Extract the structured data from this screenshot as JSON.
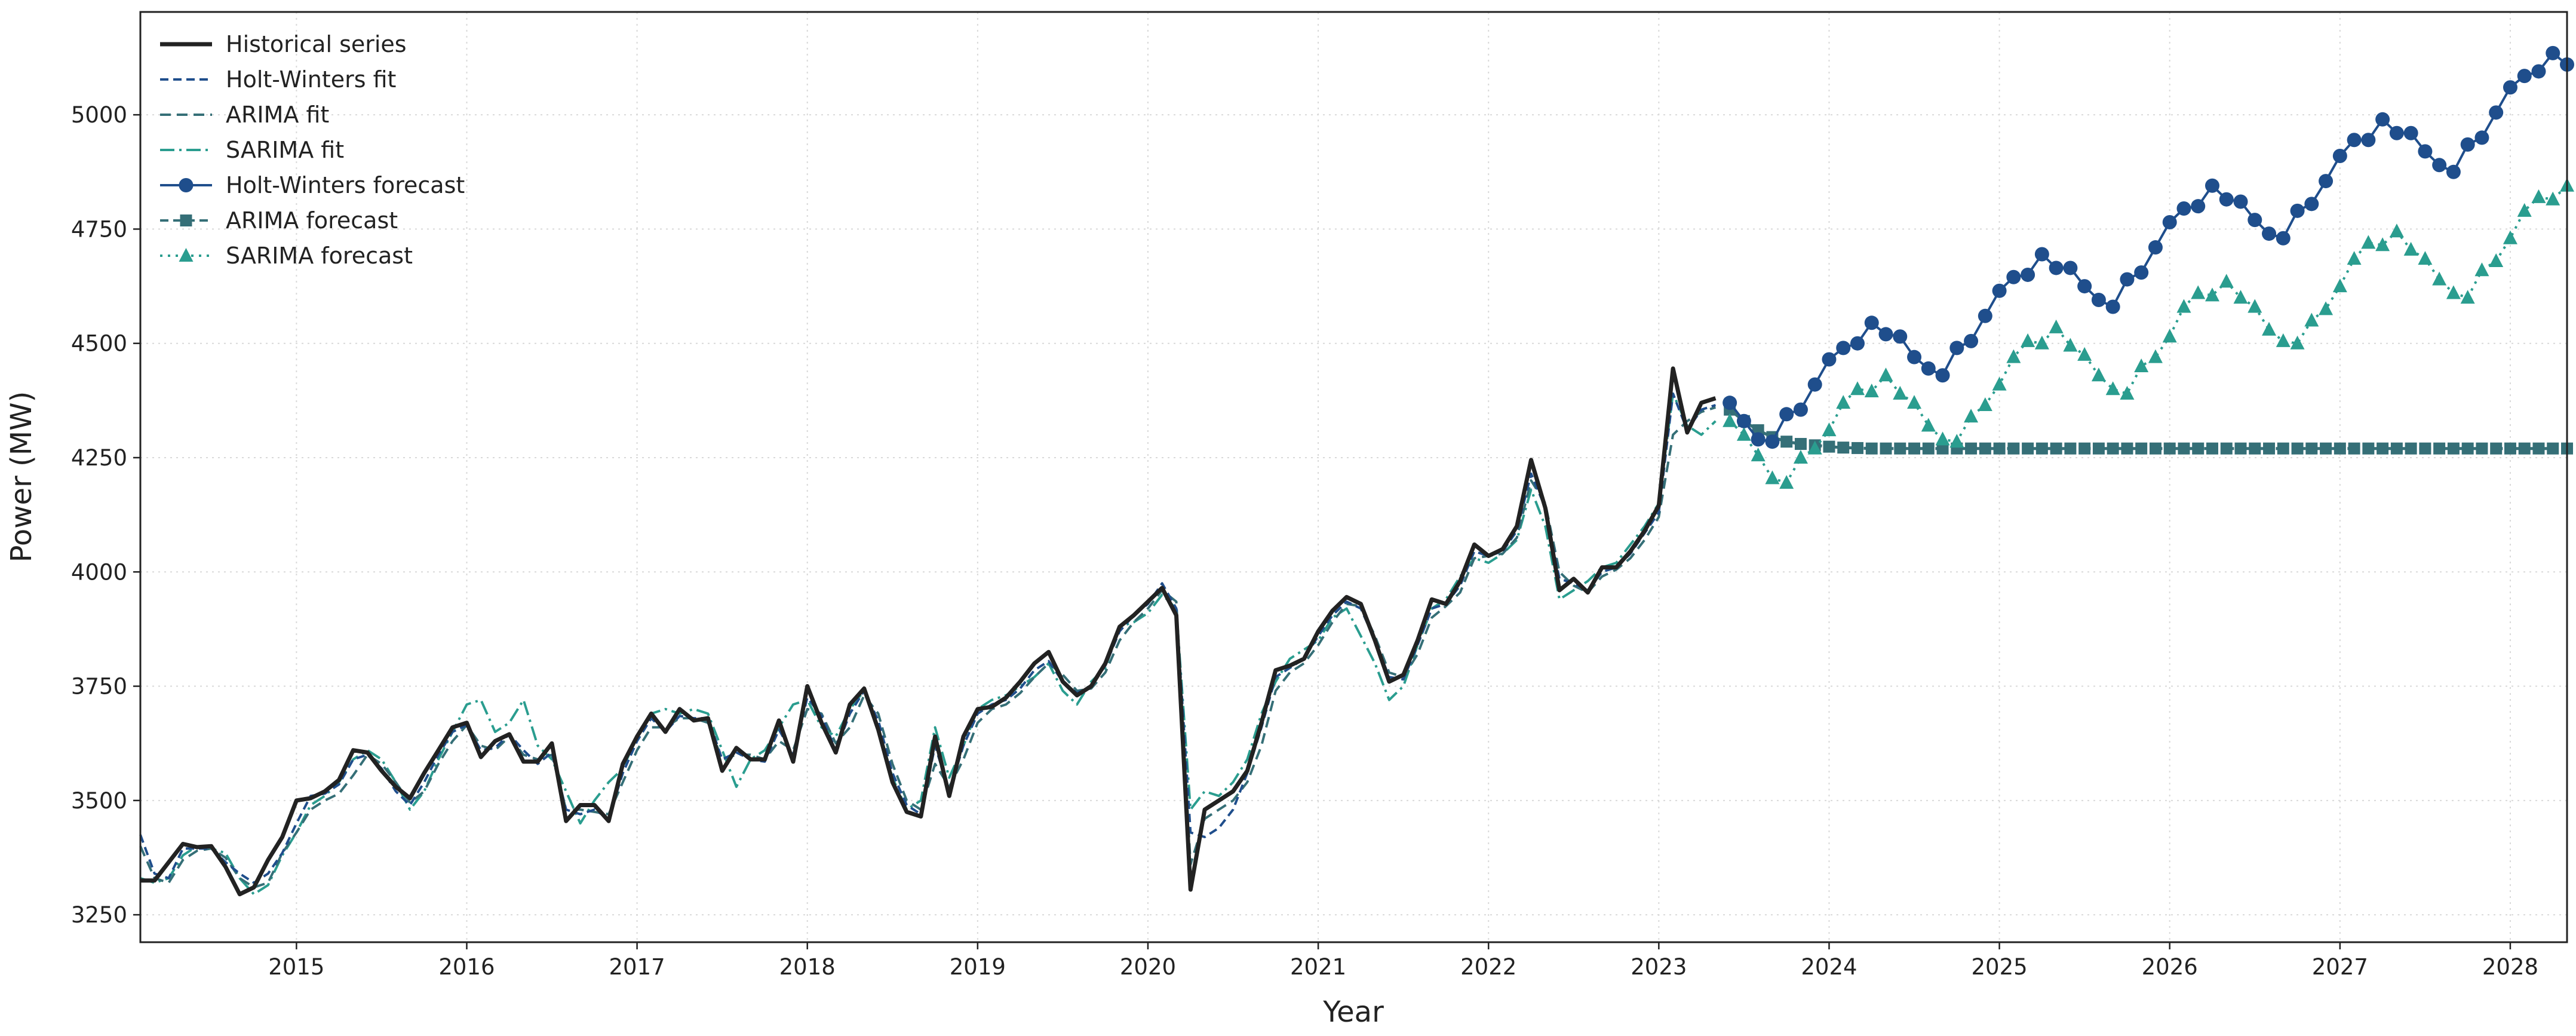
{
  "chart_data": {
    "type": "line",
    "xlabel": "Year",
    "ylabel": "Power (MW)",
    "xlim": [
      "2014-02-01",
      "2028-05-01"
    ],
    "ylim": [
      3190,
      5225
    ],
    "x_ticks": [
      "2015",
      "2016",
      "2017",
      "2018",
      "2019",
      "2020",
      "2021",
      "2022",
      "2023",
      "2024",
      "2025",
      "2026",
      "2027",
      "2028"
    ],
    "y_ticks": [
      3250,
      3500,
      3750,
      4000,
      4250,
      4500,
      4750,
      5000
    ],
    "grid": true,
    "legend_position": "top-left",
    "historical": {
      "name": "Historical series",
      "start": "2014-02",
      "values": [
        3325,
        3325,
        3365,
        3405,
        3398,
        3400,
        3355,
        3295,
        3310,
        3370,
        3420,
        3500,
        3505,
        3520,
        3545,
        3610,
        3605,
        3565,
        3530,
        3505,
        3560,
        3610,
        3660,
        3670,
        3595,
        3630,
        3645,
        3585,
        3585,
        3625,
        3455,
        3490,
        3490,
        3455,
        3580,
        3640,
        3690,
        3650,
        3700,
        3675,
        3680,
        3565,
        3615,
        3590,
        3590,
        3675,
        3585,
        3750,
        3670,
        3605,
        3710,
        3745,
        3655,
        3540,
        3475,
        3465,
        3640,
        3510,
        3640,
        3700,
        3705,
        3725,
        3760,
        3800,
        3825,
        3760,
        3730,
        3750,
        3800,
        3880,
        3905,
        3935,
        3965,
        3905,
        3305,
        3480,
        3500,
        3520,
        3565,
        3670,
        3785,
        3795,
        3810,
        3870,
        3915,
        3945,
        3930,
        3850,
        3760,
        3775,
        3850,
        3940,
        3930,
        3980,
        4060,
        4035,
        4050,
        4100,
        4245,
        4140,
        3960,
        3985,
        3955,
        4010,
        4010,
        4045,
        4090,
        4145,
        4445,
        4305,
        4370,
        4380
      ]
    },
    "hw_fit": {
      "name": "Holt-Winters fit",
      "start": "2014-02",
      "values": [
        3425,
        3340,
        3330,
        3395,
        3395,
        3395,
        3365,
        3340,
        3320,
        3340,
        3385,
        3450,
        3510,
        3515,
        3535,
        3590,
        3600,
        3570,
        3520,
        3490,
        3540,
        3600,
        3650,
        3665,
        3610,
        3615,
        3645,
        3610,
        3580,
        3605,
        3480,
        3470,
        3480,
        3460,
        3560,
        3630,
        3680,
        3650,
        3685,
        3680,
        3680,
        3590,
        3605,
        3590,
        3585,
        3655,
        3600,
        3725,
        3685,
        3610,
        3690,
        3740,
        3675,
        3560,
        3490,
        3470,
        3620,
        3520,
        3620,
        3690,
        3710,
        3720,
        3745,
        3785,
        3805,
        3760,
        3735,
        3750,
        3795,
        3870,
        3905,
        3930,
        3975,
        3920,
        3430,
        3420,
        3440,
        3480,
        3560,
        3660,
        3770,
        3790,
        3810,
        3860,
        3905,
        3935,
        3920,
        3850,
        3770,
        3765,
        3840,
        3920,
        3930,
        3970,
        4045,
        4035,
        4045,
        4090,
        4215,
        4140,
        3985,
        3975,
        3960,
        4000,
        4010,
        4040,
        4085,
        4130,
        4390,
        4310,
        4355,
        4365
      ]
    },
    "arima_fit": {
      "name": "ARIMA fit",
      "start": "2014-02",
      "values": [
        3400,
        3330,
        3320,
        3370,
        3390,
        3395,
        3375,
        3330,
        3310,
        3320,
        3385,
        3430,
        3480,
        3500,
        3515,
        3555,
        3600,
        3580,
        3540,
        3495,
        3520,
        3580,
        3630,
        3665,
        3620,
        3610,
        3640,
        3600,
        3590,
        3600,
        3480,
        3480,
        3475,
        3470,
        3540,
        3610,
        3660,
        3660,
        3680,
        3680,
        3670,
        3590,
        3600,
        3600,
        3590,
        3630,
        3610,
        3700,
        3690,
        3625,
        3660,
        3730,
        3690,
        3580,
        3500,
        3480,
        3580,
        3530,
        3590,
        3670,
        3700,
        3710,
        3735,
        3770,
        3800,
        3775,
        3740,
        3745,
        3780,
        3850,
        3890,
        3920,
        3960,
        3935,
        3360,
        3460,
        3480,
        3500,
        3540,
        3620,
        3740,
        3780,
        3800,
        3840,
        3890,
        3930,
        3925,
        3860,
        3780,
        3770,
        3820,
        3900,
        3925,
        3955,
        4030,
        4035,
        4040,
        4075,
        4200,
        4150,
        4000,
        3970,
        3955,
        3990,
        4005,
        4030,
        4070,
        4120,
        4300,
        4330,
        4350,
        4360
      ]
    },
    "sarima_fit": {
      "name": "SARIMA fit",
      "start": "2014-02",
      "values": [
        3330,
        3320,
        3330,
        3380,
        3400,
        3395,
        3385,
        3330,
        3295,
        3315,
        3380,
        3430,
        3490,
        3510,
        3540,
        3590,
        3610,
        3590,
        3540,
        3480,
        3520,
        3590,
        3650,
        3710,
        3720,
        3650,
        3670,
        3720,
        3620,
        3590,
        3520,
        3450,
        3500,
        3540,
        3570,
        3640,
        3690,
        3700,
        3690,
        3700,
        3690,
        3610,
        3530,
        3590,
        3610,
        3660,
        3710,
        3720,
        3660,
        3640,
        3700,
        3740,
        3660,
        3550,
        3480,
        3500,
        3660,
        3550,
        3620,
        3700,
        3720,
        3730,
        3750,
        3770,
        3800,
        3740,
        3710,
        3760,
        3790,
        3880,
        3890,
        3910,
        3950,
        3920,
        3480,
        3520,
        3510,
        3540,
        3590,
        3690,
        3760,
        3810,
        3830,
        3850,
        3900,
        3920,
        3860,
        3800,
        3720,
        3750,
        3840,
        3920,
        3940,
        3990,
        4030,
        4020,
        4040,
        4070,
        4180,
        4100,
        3940,
        3960,
        3980,
        4010,
        4020,
        4060,
        4100,
        4150,
        4390,
        4320,
        4300,
        4330
      ]
    },
    "hw_forecast": {
      "name": "Holt-Winters forecast",
      "start": "2023-06",
      "values": [
        4370,
        4330,
        4290,
        4285,
        4345,
        4355,
        4410,
        4465,
        4490,
        4500,
        4545,
        4520,
        4515,
        4470,
        4445,
        4430,
        4490,
        4505,
        4560,
        4615,
        4645,
        4650,
        4695,
        4665,
        4665,
        4625,
        4595,
        4580,
        4640,
        4655,
        4710,
        4765,
        4795,
        4800,
        4845,
        4815,
        4810,
        4770,
        4740,
        4730,
        4790,
        4805,
        4855,
        4910,
        4945,
        4945,
        4990,
        4960,
        4960,
        4920,
        4890,
        4875,
        4935,
        4950,
        5005,
        5060,
        5085,
        5095,
        5135,
        5110
      ]
    },
    "arima_forecast": {
      "name": "ARIMA forecast",
      "start": "2023-06",
      "values": [
        4355,
        4330,
        4310,
        4295,
        4285,
        4280,
        4277,
        4274,
        4272,
        4271,
        4270,
        4270,
        4270,
        4270,
        4270,
        4270,
        4270,
        4270,
        4270,
        4270,
        4270,
        4270,
        4270,
        4270,
        4270,
        4270,
        4270,
        4270,
        4270,
        4270,
        4270,
        4270,
        4270,
        4270,
        4270,
        4270,
        4270,
        4270,
        4270,
        4270,
        4270,
        4270,
        4270,
        4270,
        4270,
        4270,
        4270,
        4270,
        4270,
        4270,
        4270,
        4270,
        4270,
        4270,
        4270,
        4270,
        4270,
        4270,
        4270,
        4270
      ]
    },
    "sarima_forecast": {
      "name": "SARIMA forecast",
      "start": "2023-06",
      "values": [
        4330,
        4300,
        4255,
        4205,
        4195,
        4250,
        4270,
        4310,
        4370,
        4400,
        4395,
        4430,
        4390,
        4370,
        4320,
        4290,
        4285,
        4340,
        4365,
        4410,
        4470,
        4505,
        4500,
        4535,
        4495,
        4475,
        4430,
        4400,
        4390,
        4450,
        4470,
        4515,
        4580,
        4610,
        4605,
        4635,
        4600,
        4580,
        4530,
        4505,
        4500,
        4550,
        4575,
        4625,
        4685,
        4720,
        4715,
        4745,
        4705,
        4685,
        4640,
        4610,
        4600,
        4660,
        4680,
        4730,
        4790,
        4820,
        4815,
        4845
      ]
    },
    "colors": {
      "historical": "#222222",
      "hw": "#1f4e8c",
      "arima": "#356f77",
      "sarima": "#2a9d8f"
    }
  }
}
